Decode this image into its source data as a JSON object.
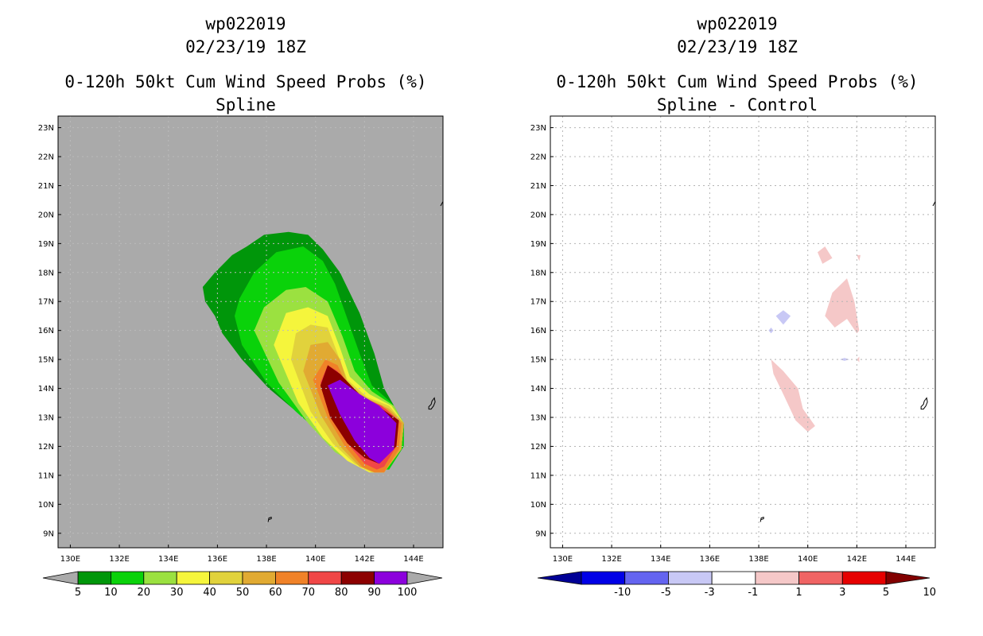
{
  "chart_data": [
    {
      "type": "heatmap",
      "storm_id": "wp022019",
      "datetime": "02/23/19 18Z",
      "title": "0-120h 50kt Cum Wind Speed Probs (%)",
      "subtitle": "Spline",
      "x_ticks": [
        "130E",
        "132E",
        "134E",
        "136E",
        "138E",
        "140E",
        "142E",
        "144E"
      ],
      "y_ticks": [
        "9N",
        "10N",
        "11N",
        "12N",
        "13N",
        "14N",
        "15N",
        "16N",
        "17N",
        "18N",
        "19N",
        "20N",
        "21N",
        "22N",
        "23N"
      ],
      "xlim": [
        129.5,
        145.2
      ],
      "ylim": [
        8.5,
        23.4
      ],
      "grid": true,
      "colorbar": {
        "labels": [
          "5",
          "10",
          "20",
          "30",
          "40",
          "50",
          "60",
          "70",
          "80",
          "90",
          "100"
        ],
        "colors": [
          "#00960a",
          "#0ad20a",
          "#9be140",
          "#f5f53c",
          "#e1d23c",
          "#e1aa32",
          "#f08228",
          "#f04646",
          "#8c0000",
          "#8c00dc"
        ]
      },
      "contours": [
        {
          "level": "5",
          "color": "#00960a",
          "points": [
            [
              135.4,
              17.5
            ],
            [
              135.5,
              17.0
            ],
            [
              135.9,
              16.5
            ],
            [
              136.2,
              15.9
            ],
            [
              137.0,
              15.0
            ],
            [
              138.1,
              14.0
            ],
            [
              139.5,
              13.0
            ],
            [
              140.5,
              12.3
            ],
            [
              141.5,
              11.7
            ],
            [
              142.3,
              11.3
            ],
            [
              143.0,
              11.2
            ],
            [
              143.6,
              12.0
            ],
            [
              143.6,
              12.8
            ],
            [
              143.2,
              13.4
            ],
            [
              142.8,
              14.0
            ],
            [
              142.4,
              15.2
            ],
            [
              141.8,
              16.6
            ],
            [
              141.0,
              18.0
            ],
            [
              140.3,
              18.8
            ],
            [
              139.7,
              19.3
            ],
            [
              138.9,
              19.4
            ],
            [
              137.9,
              19.3
            ],
            [
              137.2,
              18.9
            ],
            [
              136.6,
              18.6
            ],
            [
              135.9,
              18.0
            ]
          ]
        },
        {
          "level": "10",
          "color": "#0ad20a",
          "points": [
            [
              136.7,
              16.5
            ],
            [
              137.0,
              15.5
            ],
            [
              138.0,
              14.2
            ],
            [
              139.2,
              13.2
            ],
            [
              140.4,
              12.3
            ],
            [
              141.5,
              11.5
            ],
            [
              142.3,
              11.2
            ],
            [
              143.0,
              11.2
            ],
            [
              143.6,
              12.0
            ],
            [
              143.6,
              12.8
            ],
            [
              143.1,
              13.5
            ],
            [
              142.3,
              14.1
            ],
            [
              141.8,
              15.2
            ],
            [
              141.3,
              16.4
            ],
            [
              140.8,
              17.6
            ],
            [
              140.3,
              18.4
            ],
            [
              139.5,
              18.9
            ],
            [
              138.4,
              18.7
            ],
            [
              137.5,
              18.0
            ],
            [
              136.9,
              17.1
            ]
          ]
        },
        {
          "level": "20",
          "color": "#9be140",
          "points": [
            [
              137.5,
              16.0
            ],
            [
              138.5,
              14.2
            ],
            [
              139.7,
              12.8
            ],
            [
              140.8,
              11.8
            ],
            [
              141.8,
              11.3
            ],
            [
              142.7,
              11.1
            ],
            [
              143.5,
              11.9
            ],
            [
              143.6,
              12.8
            ],
            [
              143.2,
              13.4
            ],
            [
              142.3,
              13.9
            ],
            [
              141.6,
              14.6
            ],
            [
              141.1,
              15.8
            ],
            [
              140.5,
              17.0
            ],
            [
              139.6,
              17.5
            ],
            [
              138.8,
              17.4
            ],
            [
              137.9,
              16.8
            ]
          ]
        },
        {
          "level": "30",
          "color": "#f5f53c",
          "points": [
            [
              138.3,
              15.5
            ],
            [
              139.3,
              13.5
            ],
            [
              140.3,
              12.3
            ],
            [
              141.3,
              11.5
            ],
            [
              142.2,
              11.1
            ],
            [
              142.8,
              11.1
            ],
            [
              143.5,
              11.9
            ],
            [
              143.6,
              12.8
            ],
            [
              143.1,
              13.4
            ],
            [
              142.2,
              13.8
            ],
            [
              141.4,
              14.4
            ],
            [
              141.0,
              15.4
            ],
            [
              140.5,
              16.5
            ],
            [
              139.7,
              16.8
            ],
            [
              138.8,
              16.6
            ]
          ]
        },
        {
          "level": "40",
          "color": "#e1d23c",
          "points": [
            [
              139.0,
              15.0
            ],
            [
              139.8,
              13.2
            ],
            [
              140.7,
              12.1
            ],
            [
              141.6,
              11.4
            ],
            [
              142.3,
              11.1
            ],
            [
              142.8,
              11.1
            ],
            [
              143.5,
              11.9
            ],
            [
              143.6,
              12.8
            ],
            [
              143.0,
              13.4
            ],
            [
              142.1,
              13.7
            ],
            [
              141.3,
              14.3
            ],
            [
              140.9,
              15.2
            ],
            [
              140.5,
              16.1
            ],
            [
              139.8,
              16.2
            ],
            [
              139.2,
              15.9
            ]
          ]
        },
        {
          "level": "50",
          "color": "#e1aa32",
          "points": [
            [
              139.5,
              14.6
            ],
            [
              140.2,
              13.1
            ],
            [
              141.0,
              12.0
            ],
            [
              141.8,
              11.3
            ],
            [
              142.4,
              11.1
            ],
            [
              142.8,
              11.1
            ],
            [
              143.5,
              11.9
            ],
            [
              143.6,
              12.8
            ],
            [
              143.0,
              13.3
            ],
            [
              142.0,
              13.7
            ],
            [
              141.3,
              14.2
            ],
            [
              141.0,
              15.0
            ],
            [
              140.5,
              15.6
            ],
            [
              139.8,
              15.5
            ]
          ]
        },
        {
          "level": "60",
          "color": "#f08228",
          "points": [
            [
              139.9,
              14.3
            ],
            [
              140.5,
              13.0
            ],
            [
              141.2,
              12.0
            ],
            [
              141.9,
              11.3
            ],
            [
              142.4,
              11.1
            ],
            [
              142.8,
              11.1
            ],
            [
              143.4,
              11.9
            ],
            [
              143.5,
              12.8
            ],
            [
              142.9,
              13.3
            ],
            [
              142.0,
              13.6
            ],
            [
              141.3,
              14.1
            ],
            [
              140.9,
              14.8
            ],
            [
              140.4,
              15.0
            ]
          ]
        },
        {
          "level": "70",
          "color": "#f04646",
          "points": [
            [
              140.2,
              14.2
            ],
            [
              140.7,
              13.0
            ],
            [
              141.4,
              12.0
            ],
            [
              142.0,
              11.4
            ],
            [
              142.5,
              11.2
            ],
            [
              142.8,
              11.3
            ],
            [
              143.3,
              12.0
            ],
            [
              143.4,
              12.9
            ],
            [
              142.7,
              13.4
            ],
            [
              141.9,
              13.7
            ],
            [
              141.3,
              14.1
            ],
            [
              140.9,
              14.6
            ],
            [
              140.5,
              14.8
            ]
          ]
        },
        {
          "level": "80",
          "color": "#8c0000",
          "points": [
            [
              140.2,
              14.1
            ],
            [
              140.6,
              13.0
            ],
            [
              141.3,
              12.1
            ],
            [
              142.0,
              11.6
            ],
            [
              142.6,
              11.4
            ],
            [
              143.3,
              12.0
            ],
            [
              143.4,
              12.9
            ],
            [
              142.7,
              13.3
            ],
            [
              141.9,
              13.7
            ],
            [
              141.0,
              14.5
            ],
            [
              140.5,
              14.8
            ]
          ]
        },
        {
          "level": "90",
          "color": "#8c00dc",
          "points": [
            [
              140.5,
              14.1
            ],
            [
              141.0,
              13.1
            ],
            [
              141.6,
              12.2
            ],
            [
              142.2,
              11.6
            ],
            [
              142.6,
              11.4
            ],
            [
              143.2,
              11.9
            ],
            [
              143.3,
              12.8
            ],
            [
              142.6,
              13.4
            ],
            [
              141.8,
              13.8
            ],
            [
              141.0,
              14.3
            ]
          ]
        }
      ]
    },
    {
      "type": "heatmap",
      "storm_id": "wp022019",
      "datetime": "02/23/19 18Z",
      "title": "0-120h 50kt Cum Wind Speed Probs (%)",
      "subtitle": "Spline - Control",
      "x_ticks": [
        "130E",
        "132E",
        "134E",
        "136E",
        "138E",
        "140E",
        "142E",
        "144E"
      ],
      "y_ticks": [
        "9N",
        "10N",
        "11N",
        "12N",
        "13N",
        "14N",
        "15N",
        "16N",
        "17N",
        "18N",
        "19N",
        "20N",
        "21N",
        "22N",
        "23N"
      ],
      "xlim": [
        129.5,
        145.2
      ],
      "ylim": [
        8.5,
        23.4
      ],
      "grid": true,
      "colorbar": {
        "labels": [
          "-10",
          "-5",
          "-3",
          "-1",
          "1",
          "3",
          "5",
          "10"
        ],
        "colors": [
          "#000096",
          "#0000e6",
          "#6464f0",
          "#c8c8f5",
          "#ffffff",
          "#f5c8c8",
          "#f06464",
          "#e60000",
          "#820000"
        ]
      },
      "diff_regions": [
        {
          "level": "1",
          "color": "#f5c8c8",
          "points": [
            [
              140.4,
              18.7
            ],
            [
              140.6,
              18.3
            ],
            [
              141.0,
              18.5
            ],
            [
              140.7,
              18.9
            ]
          ]
        },
        {
          "level": "1",
          "color": "#f5c8c8",
          "points": [
            [
              142.0,
              18.6
            ],
            [
              142.1,
              18.4
            ],
            [
              142.15,
              18.6
            ]
          ]
        },
        {
          "level": "1",
          "color": "#f5c8c8",
          "points": [
            [
              140.7,
              16.5
            ],
            [
              141.0,
              17.3
            ],
            [
              141.6,
              17.8
            ],
            [
              141.9,
              17.0
            ],
            [
              142.1,
              16.0
            ],
            [
              142.0,
              15.9
            ],
            [
              141.6,
              16.4
            ],
            [
              141.1,
              16.1
            ]
          ]
        },
        {
          "level": "1",
          "color": "#f5c8c8",
          "points": [
            [
              138.5,
              15.0
            ],
            [
              139.0,
              14.6
            ],
            [
              139.6,
              14.0
            ],
            [
              139.8,
              13.3
            ],
            [
              140.3,
              12.7
            ],
            [
              140.0,
              12.5
            ],
            [
              139.5,
              12.9
            ],
            [
              139.0,
              13.8
            ],
            [
              138.6,
              14.5
            ]
          ]
        },
        {
          "level": "1",
          "color": "#f5c8c8",
          "points": [
            [
              142.0,
              15.0
            ],
            [
              142.1,
              14.9
            ],
            [
              142.1,
              15.1
            ]
          ]
        },
        {
          "level": "-1",
          "color": "#c8c8f5",
          "points": [
            [
              138.7,
              16.5
            ],
            [
              139.0,
              16.7
            ],
            [
              139.3,
              16.5
            ],
            [
              139.0,
              16.2
            ]
          ]
        },
        {
          "level": "-1",
          "color": "#c8c8f5",
          "points": [
            [
              138.4,
              16.0
            ],
            [
              138.5,
              16.1
            ],
            [
              138.6,
              16.0
            ],
            [
              138.5,
              15.9
            ]
          ]
        },
        {
          "level": "-1",
          "color": "#c8c8f5",
          "points": [
            [
              141.3,
              15.0
            ],
            [
              141.5,
              15.05
            ],
            [
              141.7,
              15.0
            ],
            [
              141.5,
              14.95
            ]
          ]
        }
      ]
    }
  ]
}
